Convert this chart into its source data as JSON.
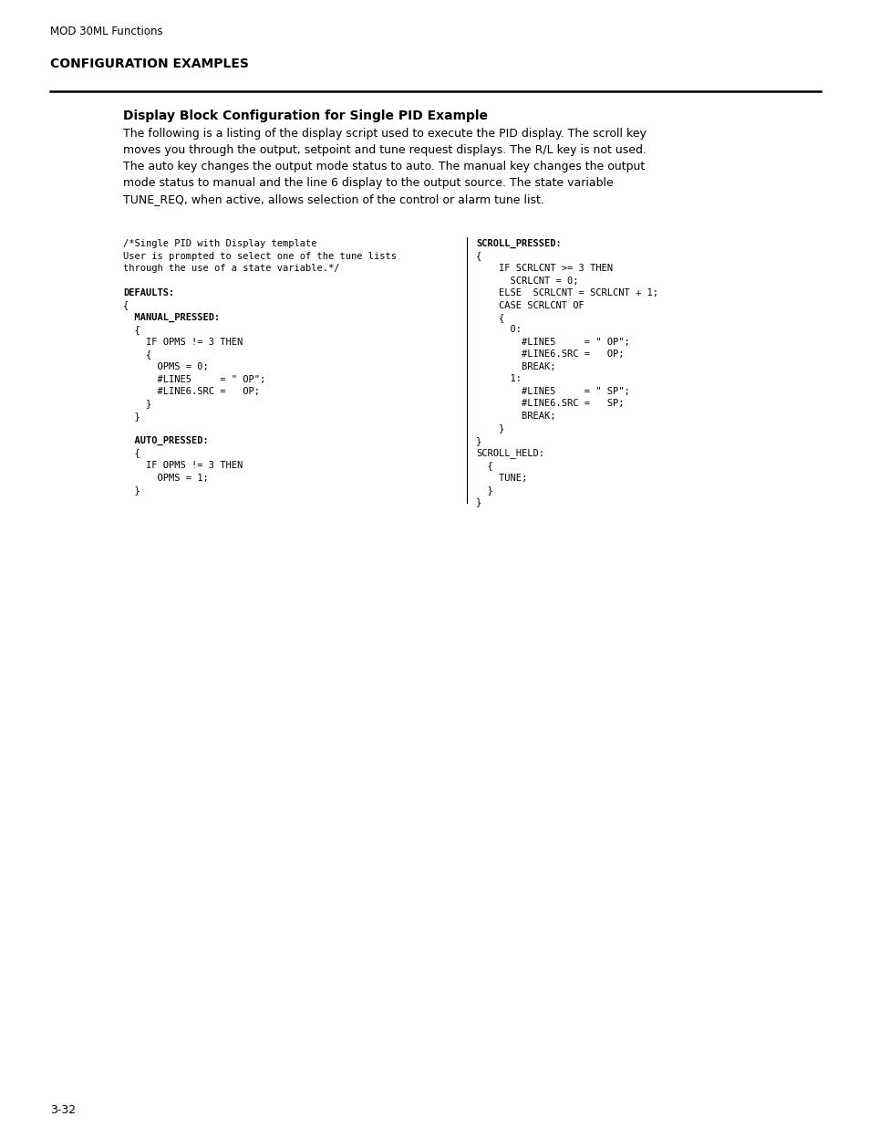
{
  "page_header": "MOD 30ML Functions",
  "section_title": "CONFIGURATION EXAMPLES",
  "subsection_title": "Display Block Configuration for Single PID Example",
  "body_text": [
    "The following is a listing of the display script used to execute the PID display. The scroll key",
    "moves you through the output, setpoint and tune request displays. The R/L key is not used.",
    "The auto key changes the output mode status to auto. The manual key changes the output",
    "mode status to manual and the line 6 display to the output source. The state variable",
    "TUNE_REQ, when active, allows selection of the control or alarm tune list."
  ],
  "left_code_normal": [
    "/*Single PID with Display template",
    "User is prompted to select one of the tune lists",
    "through the use of a state variable.*/"
  ],
  "left_code_blocks": [
    {
      "text": "DEFAULTS:",
      "bold": true,
      "indent": 0
    },
    {
      "text": "{",
      "bold": false,
      "indent": 0
    },
    {
      "text": "  MANUAL_PRESSED:",
      "bold": true,
      "indent": 0
    },
    {
      "text": "  {",
      "bold": false,
      "indent": 0
    },
    {
      "text": "    IF OPMS != 3 THEN",
      "bold": false,
      "indent": 0
    },
    {
      "text": "    {",
      "bold": false,
      "indent": 0
    },
    {
      "text": "      OPMS = 0;",
      "bold": false,
      "indent": 0
    },
    {
      "text": "      #LINE5     = \" OP\";",
      "bold": false,
      "indent": 0
    },
    {
      "text": "      #LINE6.SRC =   OP;",
      "bold": false,
      "indent": 0
    },
    {
      "text": "    }",
      "bold": false,
      "indent": 0
    },
    {
      "text": "  }",
      "bold": false,
      "indent": 0
    },
    {
      "text": "",
      "bold": false,
      "indent": 0
    },
    {
      "text": "  AUTO_PRESSED:",
      "bold": true,
      "indent": 0
    },
    {
      "text": "  {",
      "bold": false,
      "indent": 0
    },
    {
      "text": "    IF OPMS != 3 THEN",
      "bold": false,
      "indent": 0
    },
    {
      "text": "      OPMS = 1;",
      "bold": false,
      "indent": 0
    },
    {
      "text": "  }",
      "bold": false,
      "indent": 0
    }
  ],
  "right_code_blocks": [
    {
      "text": "SCROLL_PRESSED:",
      "bold": true
    },
    {
      "text": "{",
      "bold": false
    },
    {
      "text": "    IF SCRLCNT >= 3 THEN",
      "bold": false
    },
    {
      "text": "      SCRLCNT = 0;",
      "bold": false
    },
    {
      "text": "    ELSE  SCRLCNT = SCRLCNT + 1;",
      "bold": false
    },
    {
      "text": "    CASE SCRLCNT OF",
      "bold": false
    },
    {
      "text": "    {",
      "bold": false
    },
    {
      "text": "      0:",
      "bold": false
    },
    {
      "text": "        #LINE5     = \" OP\";",
      "bold": false
    },
    {
      "text": "        #LINE6.SRC =   OP;",
      "bold": false
    },
    {
      "text": "        BREAK;",
      "bold": false
    },
    {
      "text": "      1:",
      "bold": false
    },
    {
      "text": "        #LINE5     = \" SP\";",
      "bold": false
    },
    {
      "text": "        #LINE6.SRC =   SP;",
      "bold": false
    },
    {
      "text": "        BREAK;",
      "bold": false
    },
    {
      "text": "    }",
      "bold": false
    },
    {
      "text": "}",
      "bold": false
    },
    {
      "text": "SCROLL_HELD:",
      "bold": false
    },
    {
      "text": "  {",
      "bold": false
    },
    {
      "text": "    TUNE;",
      "bold": false
    },
    {
      "text": "  }",
      "bold": false
    },
    {
      "text": "}",
      "bold": false
    }
  ],
  "page_number": "3-32",
  "bg_color": "#ffffff",
  "text_color": "#000000"
}
